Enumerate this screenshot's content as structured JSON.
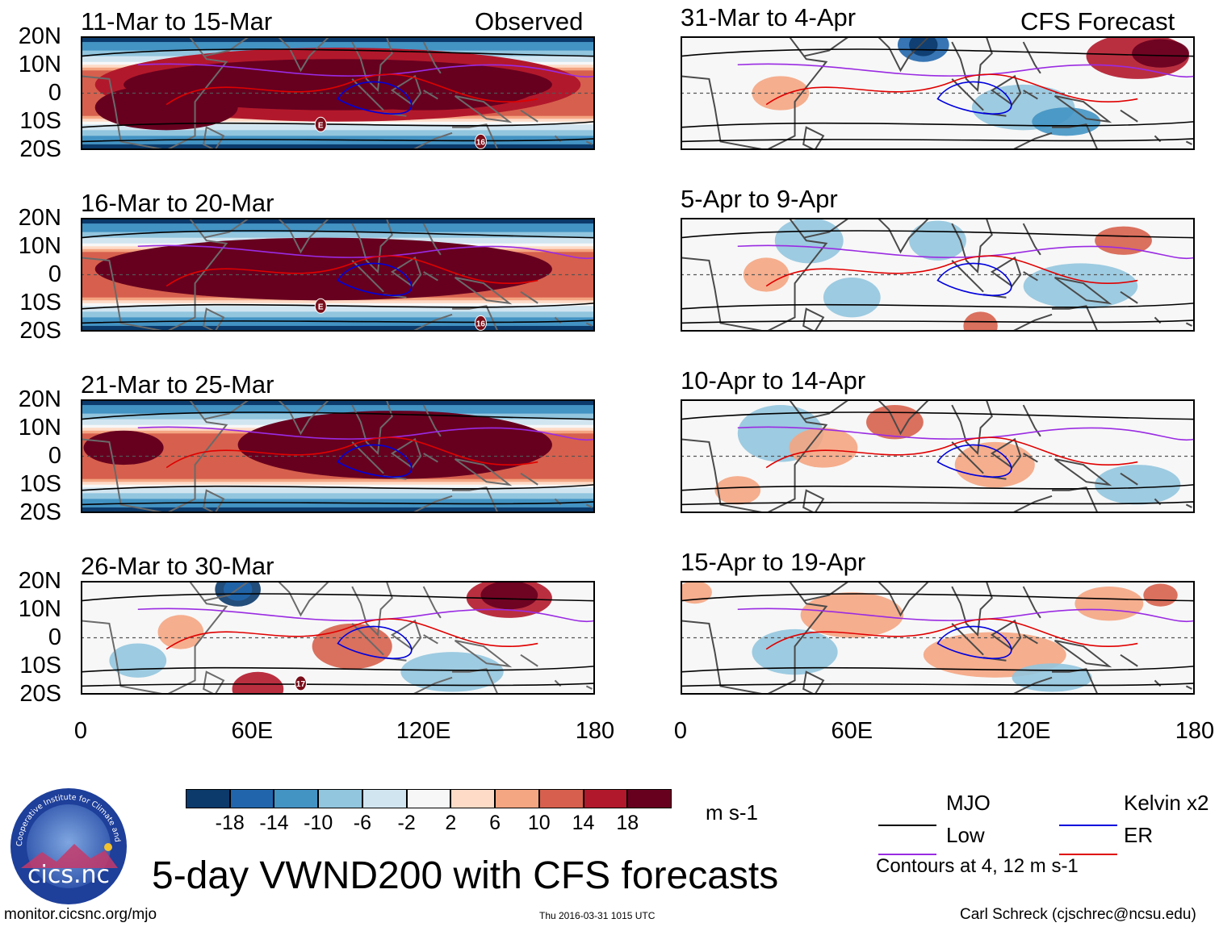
{
  "chart_data": {
    "type": "heatmap",
    "title": "5-day VWND200 with CFS forecasts",
    "variable": "VWND200",
    "units": "m s-1",
    "colorbar": {
      "levels": [
        -18,
        -14,
        -10,
        -6,
        -2,
        2,
        6,
        10,
        14,
        18
      ],
      "labels": [
        "-18",
        "-14",
        "-10",
        "-6",
        "-2",
        "2",
        "6",
        "10",
        "14",
        "18"
      ],
      "colors": [
        "#0b3a6b",
        "#2166ac",
        "#4393c3",
        "#92c5de",
        "#d1e5f0",
        "#f7f7f7",
        "#fddbc7",
        "#f4a582",
        "#d6604d",
        "#b2182b",
        "#67001f"
      ]
    },
    "axes": {
      "lat_labels": [
        "20N",
        "10N",
        "0",
        "10S",
        "20S"
      ],
      "lat_range": [
        -20,
        20
      ],
      "lon_labels": [
        "0",
        "60E",
        "120E",
        "180"
      ],
      "lon_range": [
        0,
        180
      ]
    },
    "columns": [
      {
        "header": "Observed",
        "panels": [
          "11-Mar to 15-Mar",
          "16-Mar to 20-Mar",
          "21-Mar to 25-Mar",
          "26-Mar to 30-Mar"
        ]
      },
      {
        "header": "CFS Forecast",
        "panels": [
          "31-Mar to 4-Apr",
          "5-Apr to 9-Apr",
          "10-Apr to 14-Apr",
          "15-Apr to 19-Apr"
        ]
      }
    ],
    "contour_legend": [
      {
        "name": "MJO",
        "color": "#000000"
      },
      {
        "name": "Kelvin x2",
        "color": "#0000dd"
      },
      {
        "name": "Low",
        "color": "#9a2be2"
      },
      {
        "name": "ER",
        "color": "#e00000"
      }
    ],
    "contour_note": "Contours at 4, 12 m s-1",
    "storm_markers": [
      "E",
      "16",
      "E",
      "16",
      "17"
    ]
  },
  "footer": {
    "logo_text": "cics.nc",
    "logo_ring_text": "Cooperative Institute for Climate and Satellites",
    "url": "monitor.cicsnc.org/mjo",
    "timestamp": "Thu 2016-03-31 1015 UTC",
    "author": "Carl Schreck (cjschrec@ncsu.edu)"
  }
}
